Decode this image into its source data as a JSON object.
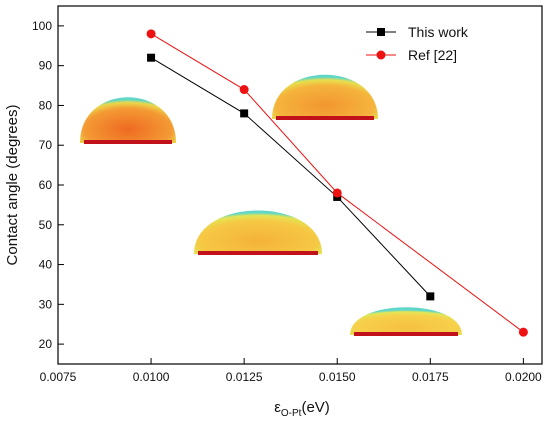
{
  "chart_data": {
    "type": "line",
    "title": "",
    "xlabel_main": "ε",
    "xlabel_sub": "O-Pt",
    "xlabel_unit": "(eV)",
    "ylabel": "Contact angle (degrees)",
    "xlim": [
      0.0075,
      0.0205
    ],
    "ylim": [
      15,
      105
    ],
    "x_ticks": [
      "0.0075",
      "0.0100",
      "0.0125",
      "0.0150",
      "0.0175",
      "0.0200"
    ],
    "x_tick_values": [
      0.0075,
      0.01,
      0.0125,
      0.015,
      0.0175,
      0.02
    ],
    "y_ticks": [
      "20",
      "30",
      "40",
      "50",
      "60",
      "70",
      "80",
      "90",
      "100"
    ],
    "y_tick_values": [
      20,
      30,
      40,
      50,
      60,
      70,
      80,
      90,
      100
    ],
    "legend_position": "top-right",
    "grid": false,
    "series": [
      {
        "name": "This work",
        "color": "#000000",
        "marker": "square",
        "x": [
          0.01,
          0.0125,
          0.015,
          0.0175
        ],
        "y": [
          92,
          78,
          57,
          32
        ]
      },
      {
        "name": "Ref [22]",
        "color": "#ee1111",
        "marker": "circle",
        "x": [
          0.01,
          0.0125,
          0.015,
          0.02
        ],
        "y": [
          98,
          84,
          58,
          23
        ]
      }
    ],
    "droplet_insets": [
      {
        "name": "droplet-inset-1",
        "fill": "#f07a2a"
      },
      {
        "name": "droplet-inset-2",
        "fill": "#f4a530"
      },
      {
        "name": "droplet-inset-3",
        "fill": "#f5c13a"
      },
      {
        "name": "droplet-inset-4",
        "fill": "#f7cf45"
      }
    ]
  }
}
